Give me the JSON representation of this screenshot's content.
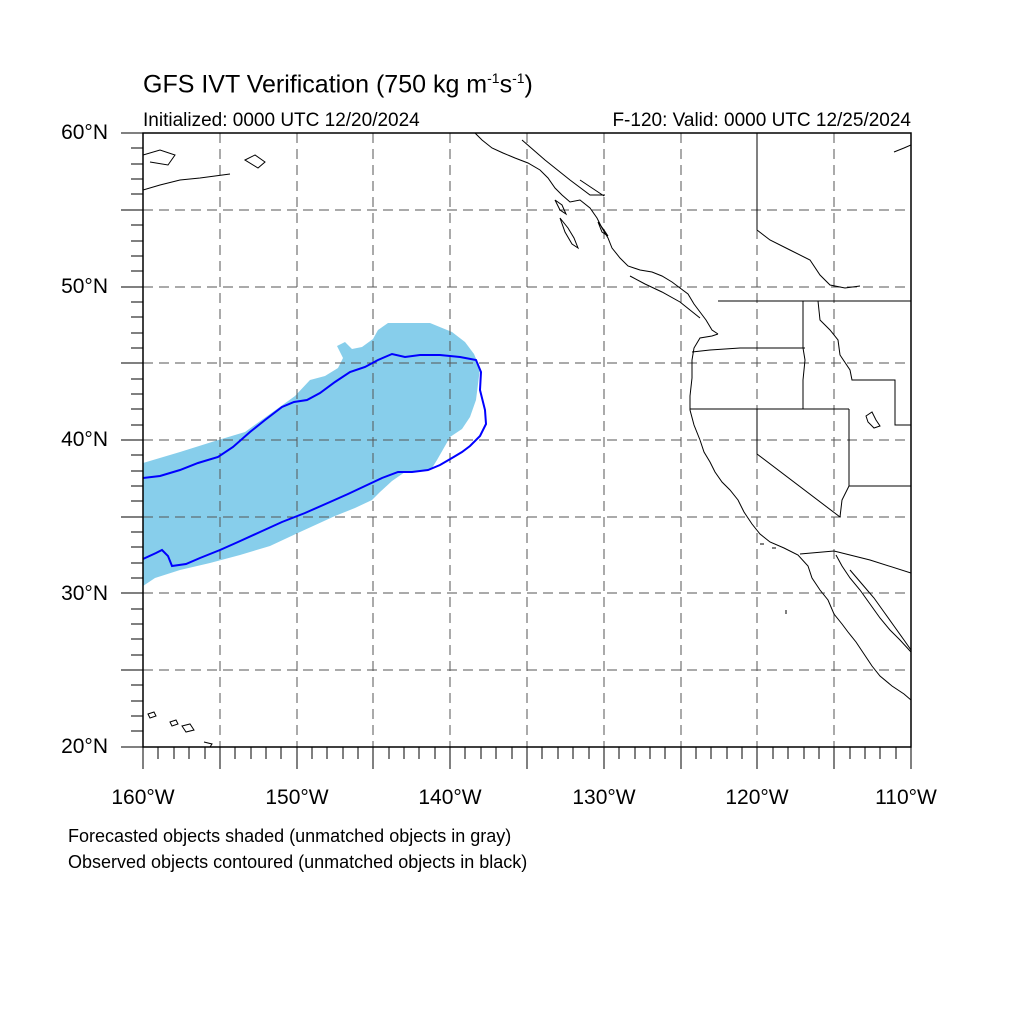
{
  "title": {
    "main": "GFS IVT Verification (750 kg m",
    "exp1": "-1",
    "mid": "s",
    "exp2": "-1",
    "end": ")"
  },
  "subtitle": {
    "initialized": "Initialized: 0000 UTC 12/20/2024",
    "valid": "F-120: Valid: 0000 UTC 12/25/2024"
  },
  "map": {
    "lon_range": [
      -160,
      -110
    ],
    "lat_range": [
      20,
      60
    ],
    "lat_labels": [
      "20°N",
      "30°N",
      "40°N",
      "50°N",
      "60°N"
    ],
    "lon_labels": [
      "160°W",
      "150°W",
      "140°W",
      "130°W",
      "120°W",
      "110°W"
    ],
    "gridlines": "dashed",
    "forecast_color": "#87ceeb",
    "observed_color": "#0000ff"
  },
  "legend": {
    "line1": "Forecasted objects shaded (unmatched objects in gray)",
    "line2": "Observed objects contoured (unmatched objects in black)"
  }
}
